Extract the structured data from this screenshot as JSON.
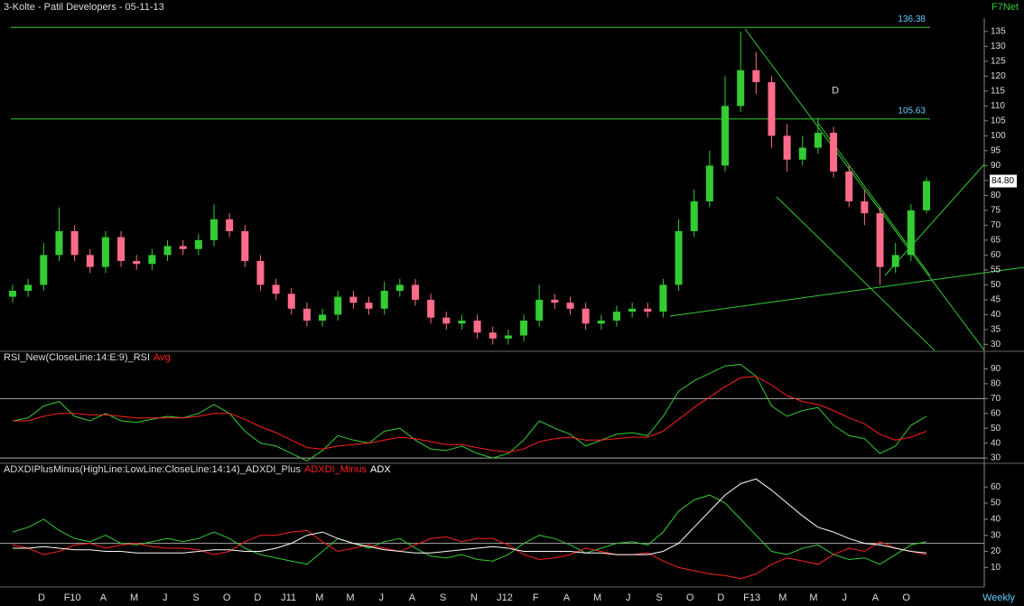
{
  "header": {
    "title": "3-Kolte - Patil Developers - 05-11-13",
    "source": "F7Net",
    "period": "Weekly"
  },
  "x_axis": {
    "labels": [
      "D",
      "F10",
      "A",
      "M",
      "J",
      "S",
      "O",
      "D",
      "J11",
      "M",
      "M",
      "J",
      "A",
      "S",
      "N",
      "J12",
      "F",
      "A",
      "M",
      "J",
      "S",
      "O",
      "D",
      "F13",
      "M",
      "M",
      "J",
      "A",
      "O"
    ]
  },
  "chart_data": [
    {
      "type": "candlestick",
      "up_color": "#33cc33",
      "down_color": "#ff6b8a",
      "open": [
        46,
        48,
        50,
        60,
        68,
        60,
        56,
        66,
        58,
        57,
        60,
        63,
        62,
        65,
        72,
        68,
        58,
        50,
        47,
        42,
        38,
        40,
        46,
        44,
        42,
        48,
        50,
        45,
        39,
        37,
        38,
        34,
        32,
        33,
        38,
        45,
        44,
        42,
        37,
        38,
        41,
        42,
        41,
        50,
        68,
        78,
        90,
        110,
        122,
        118,
        100,
        92,
        96,
        101,
        88,
        78,
        74,
        56,
        60,
        75
      ],
      "high": [
        50,
        52,
        64,
        76,
        70,
        62,
        68,
        68,
        60,
        62,
        65,
        65,
        67,
        77,
        74,
        70,
        60,
        52,
        49,
        44,
        42,
        48,
        48,
        46,
        51,
        52,
        52,
        47,
        41,
        40,
        40,
        36,
        35,
        40,
        50,
        47,
        46,
        44,
        40,
        43,
        44,
        44,
        52,
        72,
        82,
        95,
        120,
        135,
        128,
        120,
        104,
        100,
        106,
        103,
        90,
        82,
        76,
        64,
        77,
        86
      ],
      "low": [
        44,
        46,
        48,
        58,
        58,
        54,
        54,
        56,
        55,
        55,
        58,
        60,
        60,
        63,
        66,
        56,
        48,
        45,
        40,
        36,
        36,
        38,
        42,
        40,
        40,
        46,
        43,
        37,
        35,
        35,
        32,
        30,
        30,
        31,
        36,
        42,
        40,
        35,
        35,
        36,
        39,
        39,
        39,
        48,
        66,
        76,
        88,
        108,
        114,
        96,
        88,
        90,
        94,
        86,
        76,
        70,
        50,
        54,
        58,
        74
      ],
      "close": [
        48,
        50,
        60,
        68,
        60,
        56,
        66,
        58,
        57,
        60,
        63,
        62,
        65,
        72,
        68,
        58,
        50,
        47,
        42,
        38,
        40,
        46,
        44,
        42,
        48,
        50,
        45,
        39,
        37,
        38,
        34,
        32,
        33,
        38,
        45,
        44,
        42,
        37,
        38,
        41,
        42,
        41,
        50,
        68,
        78,
        90,
        110,
        122,
        118,
        100,
        92,
        96,
        101,
        88,
        78,
        74,
        56,
        60,
        75,
        84.8
      ],
      "ylim": [
        28,
        141
      ],
      "yticks": [
        30,
        35,
        40,
        45,
        50,
        55,
        60,
        65,
        70,
        75,
        80,
        85,
        90,
        95,
        100,
        105,
        110,
        115,
        120,
        125,
        130,
        135
      ],
      "hlines": [
        136.38,
        105.63
      ],
      "last": {
        "value": 84.8,
        "label": "84.80"
      },
      "marker_label": "D"
    },
    {
      "type": "line",
      "title": "RSI_New(CloseLine:14:E:9)",
      "series": [
        {
          "name": "_RSI",
          "color": "#33cc33",
          "values": [
            55,
            57,
            65,
            68,
            58,
            55,
            60,
            55,
            54,
            56,
            58,
            57,
            60,
            66,
            60,
            48,
            40,
            38,
            33,
            28,
            35,
            45,
            42,
            40,
            48,
            50,
            42,
            36,
            35,
            38,
            33,
            30,
            33,
            42,
            55,
            50,
            46,
            38,
            42,
            46,
            47,
            45,
            58,
            75,
            82,
            87,
            92,
            93,
            85,
            65,
            58,
            62,
            64,
            52,
            45,
            43,
            33,
            38,
            52,
            58
          ]
        },
        {
          "name": "Avg",
          "color": "#ff2020",
          "values": [
            55,
            55,
            58,
            60,
            60,
            59,
            59,
            58,
            57,
            57,
            57,
            57,
            58,
            60,
            60,
            56,
            51,
            47,
            42,
            37,
            36,
            38,
            39,
            40,
            42,
            44,
            43,
            41,
            39,
            39,
            37,
            35,
            34,
            36,
            41,
            43,
            44,
            42,
            42,
            43,
            44,
            44,
            48,
            56,
            64,
            71,
            78,
            84,
            85,
            79,
            72,
            68,
            66,
            62,
            57,
            53,
            46,
            42,
            44,
            48
          ]
        }
      ],
      "ylim": [
        27,
        100
      ],
      "yticks": [
        30,
        40,
        50,
        60,
        70,
        80,
        90
      ],
      "levels": [
        70,
        30
      ]
    },
    {
      "type": "line",
      "title": "ADXDIPlusMinus(HighLine:LowLine:CloseLine:14:14)",
      "series": [
        {
          "name": "_ADXDI_Plus",
          "color": "#33cc33",
          "values": [
            32,
            35,
            40,
            33,
            28,
            26,
            30,
            25,
            24,
            26,
            28,
            26,
            28,
            32,
            28,
            22,
            18,
            16,
            14,
            12,
            20,
            28,
            25,
            22,
            26,
            28,
            22,
            17,
            16,
            18,
            15,
            14,
            18,
            25,
            30,
            28,
            24,
            19,
            22,
            25,
            26,
            24,
            32,
            45,
            52,
            55,
            50,
            40,
            30,
            20,
            18,
            22,
            24,
            18,
            15,
            16,
            12,
            18,
            24,
            26
          ]
        },
        {
          "name": "ADXDI_Minus",
          "color": "#ff2020",
          "values": [
            24,
            22,
            18,
            20,
            24,
            25,
            22,
            24,
            25,
            23,
            22,
            22,
            21,
            18,
            20,
            26,
            30,
            30,
            32,
            33,
            26,
            20,
            22,
            24,
            22,
            20,
            24,
            28,
            29,
            26,
            28,
            28,
            24,
            18,
            15,
            16,
            18,
            22,
            20,
            18,
            18,
            19,
            14,
            10,
            8,
            6,
            5,
            3,
            6,
            12,
            16,
            14,
            12,
            18,
            22,
            20,
            26,
            22,
            20,
            18
          ]
        },
        {
          "name": "ADX",
          "color": "#ffffff",
          "values": [
            22,
            22,
            23,
            22,
            21,
            21,
            20,
            20,
            19,
            19,
            19,
            19,
            20,
            21,
            21,
            20,
            20,
            22,
            25,
            30,
            32,
            28,
            25,
            23,
            21,
            20,
            19,
            19,
            20,
            21,
            22,
            23,
            22,
            20,
            20,
            20,
            20,
            19,
            19,
            18,
            18,
            18,
            20,
            25,
            35,
            45,
            55,
            62,
            65,
            58,
            50,
            42,
            35,
            32,
            28,
            25,
            24,
            22,
            20,
            19
          ]
        }
      ],
      "ylim": [
        -1,
        73
      ],
      "yticks": [
        10,
        20,
        30,
        40,
        50,
        60
      ],
      "levels": [
        25
      ]
    }
  ]
}
